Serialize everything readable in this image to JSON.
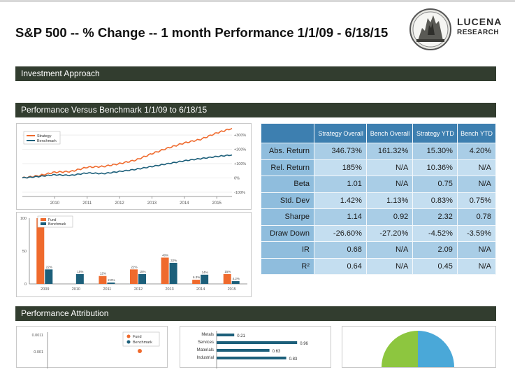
{
  "page": {
    "title": "S&P 500 -- % Change -- 1 month Performance 1/1/09 - 6/18/15",
    "brand_line1": "LUCENA",
    "brand_line2": "RESEARCH"
  },
  "sections": {
    "investment_approach": "Investment Approach",
    "performance_vs_benchmark": "Performance Versus Benchmark 1/1/09 to 6/18/15",
    "performance_attribution": "Performance Attribution"
  },
  "colors": {
    "header_bar": "#323d2f",
    "strategy": "#ef6a2d",
    "benchmark": "#1c5f7a",
    "table_header": "#3d7fb0",
    "sector_bar": "#1c5f7a",
    "pie_green": "#8dc63f",
    "pie_blue": "#4aa8d8"
  },
  "metrics_table": {
    "headers": [
      "Strategy Overall",
      "Bench Overall",
      "Strategy YTD",
      "Bench YTD"
    ],
    "rows": [
      {
        "label": "Abs. Return",
        "values": [
          "346.73%",
          "161.32%",
          "15.30%",
          "4.20%"
        ]
      },
      {
        "label": "Rel. Return",
        "values": [
          "185%",
          "N/A",
          "10.36%",
          "N/A"
        ]
      },
      {
        "label": "Beta",
        "values": [
          "1.01",
          "N/A",
          "0.75",
          "N/A"
        ]
      },
      {
        "label": "Std. Dev",
        "values": [
          "1.42%",
          "1.13%",
          "0.83%",
          "0.75%"
        ]
      },
      {
        "label": "Sharpe",
        "values": [
          "1.14",
          "0.92",
          "2.32",
          "0.78"
        ]
      },
      {
        "label": "Draw Down",
        "values": [
          "-26.60%",
          "-27.20%",
          "-4.52%",
          "-3.59%"
        ]
      },
      {
        "label": "IR",
        "values": [
          "0.68",
          "N/A",
          "2.09",
          "N/A"
        ]
      },
      {
        "label": "R²",
        "values": [
          "0.64",
          "N/A",
          "0.45",
          "N/A"
        ]
      }
    ]
  },
  "chart_data": [
    {
      "type": "line",
      "legend": [
        "Strategy",
        "Benchmark"
      ],
      "legend_position": "top-left",
      "x_ticks": [
        "2010",
        "2011",
        "2012",
        "2013",
        "2014",
        "2015"
      ],
      "x_range": [
        2009.0,
        2015.47
      ],
      "y_ticks": [
        "+300%",
        "+200%",
        "+100%",
        "0%",
        "-100%"
      ],
      "y_tick_values": [
        300,
        200,
        100,
        0,
        -100
      ],
      "ylim": [
        -130,
        340
      ],
      "series": [
        {
          "name": "Strategy",
          "x": [
            2009.0,
            2009.5,
            2010.0,
            2010.5,
            2011.0,
            2011.5,
            2012.0,
            2012.5,
            2013.0,
            2013.5,
            2014.0,
            2014.5,
            2015.0,
            2015.47
          ],
          "values": [
            0,
            15,
            40,
            45,
            75,
            80,
            100,
            125,
            170,
            210,
            245,
            270,
            315,
            347
          ]
        },
        {
          "name": "Benchmark",
          "x": [
            2009.0,
            2009.5,
            2010.0,
            2010.5,
            2011.0,
            2011.5,
            2012.0,
            2012.5,
            2013.0,
            2013.5,
            2014.0,
            2014.5,
            2015.0,
            2015.47
          ],
          "values": [
            0,
            10,
            22,
            18,
            35,
            30,
            45,
            60,
            80,
            100,
            120,
            135,
            150,
            161
          ]
        }
      ]
    },
    {
      "type": "bar",
      "legend": [
        "Fund",
        "Benchmark"
      ],
      "legend_position": "top-left",
      "categories": [
        "2009",
        "2010",
        "2011",
        "2012",
        "2013",
        "2014",
        "2015"
      ],
      "ylim": [
        0,
        100
      ],
      "y_ticks": [
        "100",
        "50",
        "0"
      ],
      "series": [
        {
          "name": "Fund",
          "values": [
            100,
            0,
            12,
            22,
            40,
            6.3,
            15
          ],
          "labels": [
            "",
            "",
            "12%",
            "22%",
            "40%",
            "6.3%",
            "15%"
          ]
        },
        {
          "name": "Benchmark",
          "values": [
            22,
            15,
            2,
            15,
            32,
            14,
            4.2
          ],
          "labels": [
            "22%",
            "15%",
            "2.0%",
            "15%",
            "32%",
            "14%",
            "4.2%"
          ]
        }
      ]
    },
    {
      "type": "scatter",
      "legend": [
        "Fund",
        "Benchmark"
      ],
      "y_ticks": [
        "0.0011",
        "0.001"
      ]
    },
    {
      "type": "bar",
      "orientation": "horizontal",
      "categories": [
        "Metals",
        "Services",
        "Materials",
        "Industrial"
      ],
      "values": [
        0.21,
        0.96,
        0.63,
        0.83
      ]
    },
    {
      "type": "pie",
      "note": "partially visible"
    }
  ]
}
